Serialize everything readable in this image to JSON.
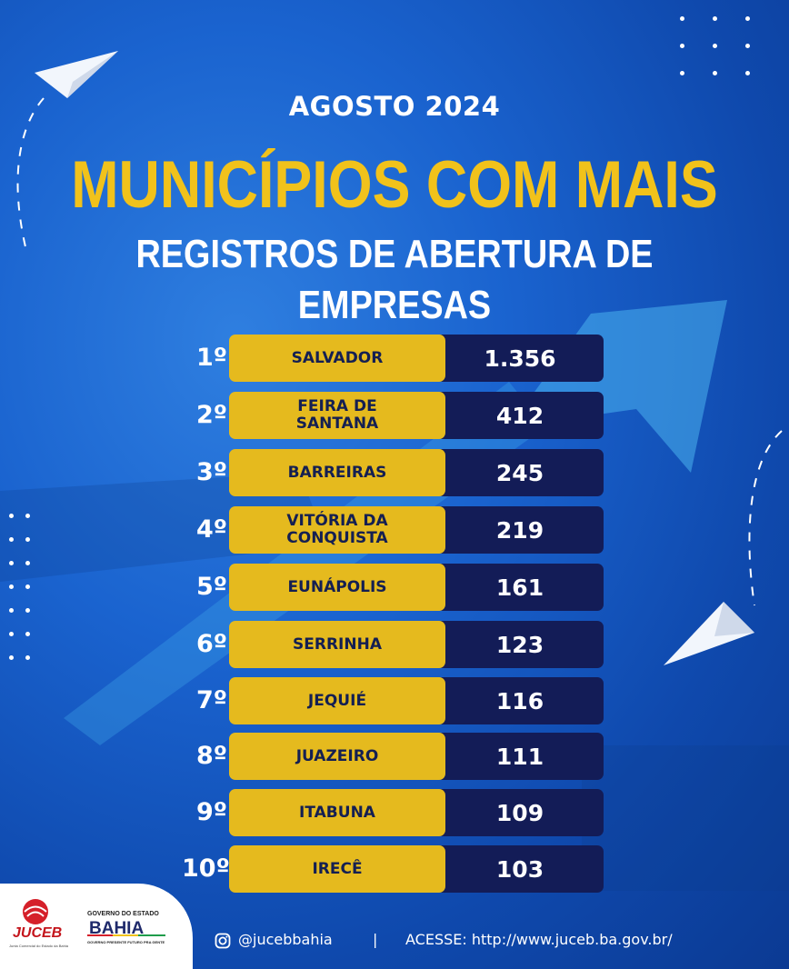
{
  "header": {
    "subtitle": "AGOSTO 2024",
    "title_line1": "MUNICÍPIOS COM MAIS",
    "title_line2": "REGISTROS DE ABERTURA DE EMPRESAS"
  },
  "ranking": [
    {
      "rank": "1º",
      "city": "SALVADOR",
      "count": "1.356"
    },
    {
      "rank": "2º",
      "city": "FEIRA DE SANTANA",
      "count": "412"
    },
    {
      "rank": "3º",
      "city": "BARREIRAS",
      "count": "245"
    },
    {
      "rank": "4º",
      "city": "VITÓRIA DA CONQUISTA",
      "count": "219"
    },
    {
      "rank": "5º",
      "city": "EUNÁPOLIS",
      "count": "161"
    },
    {
      "rank": "6º",
      "city": "SERRINHA",
      "count": "123"
    },
    {
      "rank": "7º",
      "city": "JEQUIÉ",
      "count": "116"
    },
    {
      "rank": "8º",
      "city": "JUAZEIRO",
      "count": "111"
    },
    {
      "rank": "9º",
      "city": "ITABUNA",
      "count": "109"
    },
    {
      "rank": "10º",
      "city": "IRECÊ",
      "count": "103"
    }
  ],
  "footer": {
    "juceb_logo": "JUCEB",
    "juceb_tagline": "Junta Comercial do Estado da Bahia",
    "gov_title": "GOVERNO DO ESTADO",
    "gov_logo": "BAHIA",
    "gov_tagline": "GOVERNO PRESENTE  FUTURO PRA GENTE",
    "instagram_icon": "instagram-icon",
    "instagram_handle": "@jucebbahia",
    "separator": "|",
    "website": "ACESSE: http://www.juceb.ba.gov.br/"
  },
  "colors": {
    "background": "#1a63cf",
    "title_yellow": "#f1c21b",
    "city_pill": "#e5ba1e",
    "count_pill": "#131c57",
    "city_text": "#141f52"
  }
}
